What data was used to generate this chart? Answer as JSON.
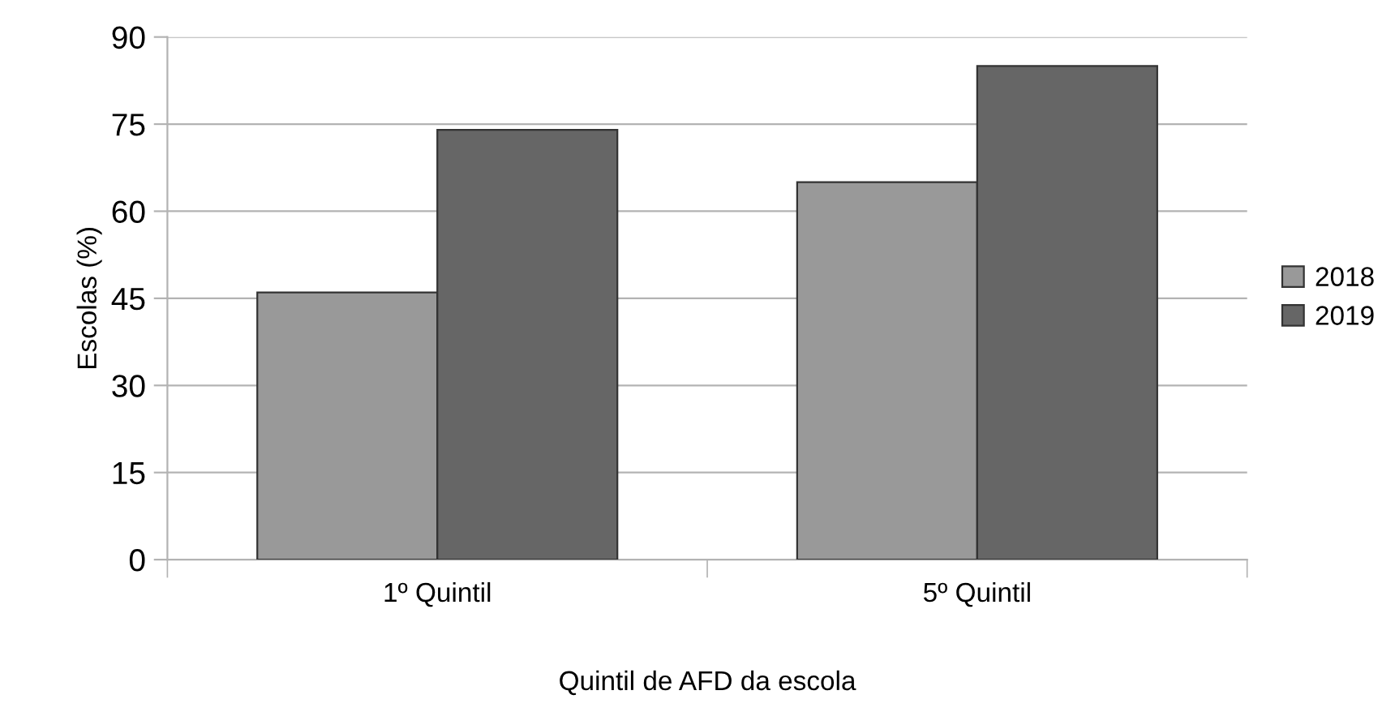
{
  "chart_data": {
    "type": "bar",
    "xlabel": "Quintil de AFD da escola",
    "ylabel": "Escolas (%)",
    "categories": [
      "1º Quintil",
      "5º Quintil"
    ],
    "series": [
      {
        "name": "2018",
        "color": "#999999",
        "values": [
          46,
          65
        ]
      },
      {
        "name": "2019",
        "color": "#666666",
        "values": [
          74,
          85
        ]
      }
    ],
    "ylim": [
      0,
      90
    ],
    "yticks": [
      0,
      15,
      30,
      45,
      60,
      75,
      90
    ],
    "grid": "y",
    "legend": "right"
  }
}
